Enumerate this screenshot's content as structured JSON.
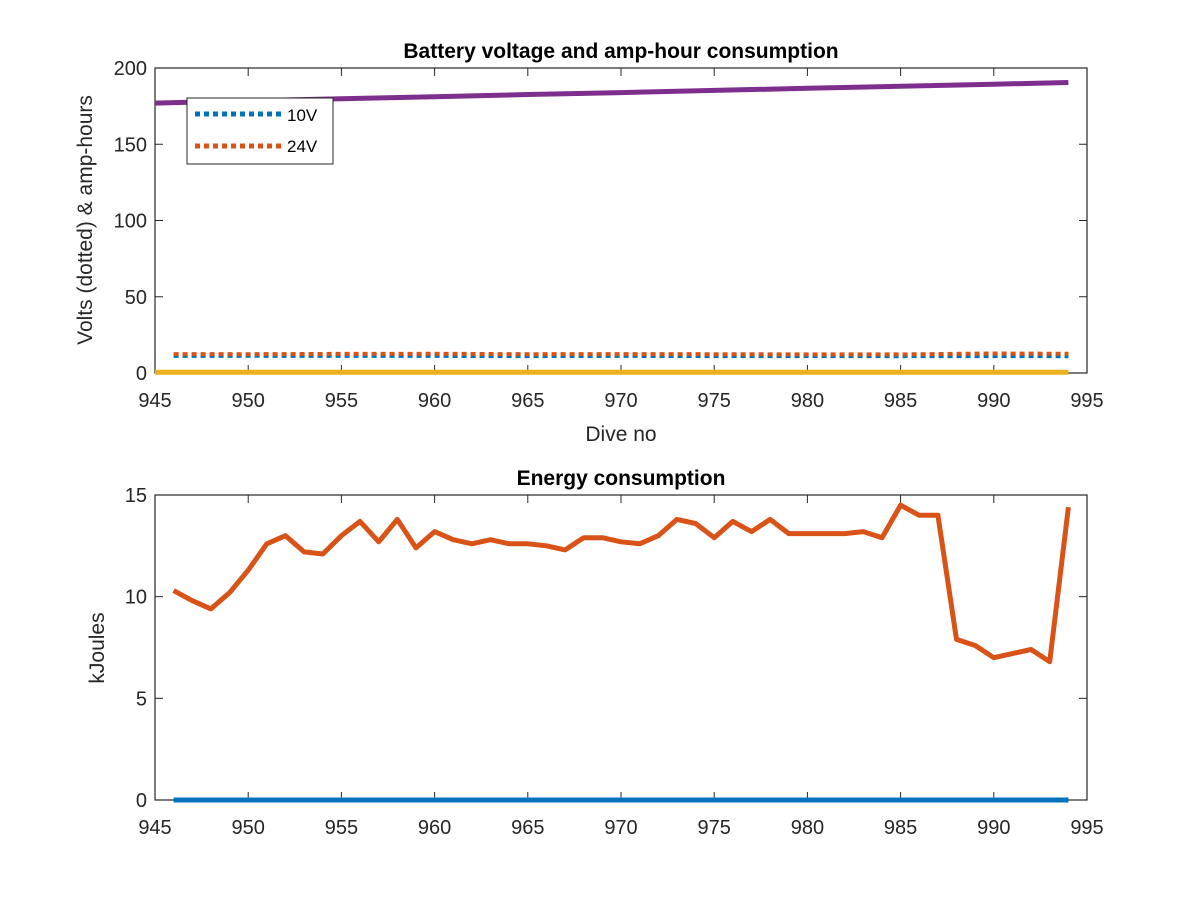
{
  "chart_data": [
    {
      "type": "line",
      "title": "Battery voltage and amp-hour consumption",
      "xlabel": "Dive no",
      "ylabel": "Volts (dotted) & amp-hours",
      "xlim": [
        945,
        995
      ],
      "ylim": [
        0,
        200
      ],
      "xticks": [
        "945",
        "950",
        "955",
        "960",
        "965",
        "970",
        "975",
        "980",
        "985",
        "990",
        "995"
      ],
      "yticks": [
        "0",
        "50",
        "100",
        "150",
        "200"
      ],
      "grid": false,
      "legend_position": "top-left",
      "series": [
        {
          "name": "10V",
          "style": "dotted",
          "color": "#0072BD",
          "x": [
            946,
            950,
            955,
            960,
            965,
            970,
            975,
            980,
            985,
            987,
            990,
            994
          ],
          "y": [
            11.2,
            11.3,
            11.2,
            11.2,
            11.1,
            11.2,
            11.1,
            11.1,
            11.0,
            11.1,
            11.1,
            11.0
          ]
        },
        {
          "name": "24V",
          "style": "dotted",
          "color": "#D95319",
          "x": [
            946,
            950,
            955,
            960,
            965,
            970,
            975,
            980,
            985,
            990,
            994
          ],
          "y": [
            12.4,
            12.3,
            12.5,
            12.6,
            12.3,
            12.4,
            12.3,
            12.2,
            12.2,
            12.8,
            12.6
          ]
        },
        {
          "style": "solid",
          "color": "#EDB120",
          "x": [
            945,
            994
          ],
          "y": [
            0.5,
            0.5
          ]
        },
        {
          "style": "solid",
          "color": "#7E2F8E",
          "x": [
            945,
            950,
            955,
            960,
            965,
            970,
            975,
            980,
            985,
            990,
            994
          ],
          "y": [
            177,
            178.5,
            179.8,
            181.2,
            182.6,
            183.9,
            185.3,
            186.7,
            188.0,
            189.4,
            190.5
          ]
        }
      ]
    },
    {
      "type": "line",
      "title": "Energy consumption",
      "xlabel": "",
      "ylabel": "kJoules",
      "xlim": [
        945,
        995
      ],
      "ylim": [
        0,
        15
      ],
      "xticks": [
        "945",
        "950",
        "955",
        "960",
        "965",
        "970",
        "975",
        "980",
        "985",
        "990",
        "995"
      ],
      "yticks": [
        "0",
        "5",
        "10",
        "15"
      ],
      "grid": false,
      "series": [
        {
          "style": "solid",
          "color": "#0072BD",
          "x": [
            946,
            994
          ],
          "y": [
            0,
            0
          ]
        },
        {
          "style": "solid",
          "color": "#D95319",
          "x": [
            946,
            947,
            948,
            949,
            950,
            951,
            952,
            953,
            954,
            955,
            956,
            957,
            958,
            959,
            960,
            961,
            962,
            963,
            964,
            965,
            966,
            967,
            968,
            969,
            970,
            971,
            972,
            973,
            974,
            975,
            976,
            977,
            978,
            979,
            980,
            981,
            982,
            983,
            984,
            985,
            986,
            987,
            988,
            989,
            990,
            991,
            992,
            993,
            994
          ],
          "y": [
            10.3,
            9.8,
            9.4,
            10.2,
            11.3,
            12.6,
            13.0,
            12.2,
            12.1,
            13.0,
            13.7,
            12.7,
            13.8,
            12.4,
            13.2,
            12.8,
            12.6,
            12.8,
            12.6,
            12.6,
            12.5,
            12.3,
            12.9,
            12.9,
            12.7,
            12.6,
            13.0,
            13.8,
            13.6,
            12.9,
            13.7,
            13.2,
            13.8,
            13.1,
            13.1,
            13.1,
            13.1,
            13.2,
            12.9,
            14.5,
            14.0,
            14.0,
            7.9,
            7.6,
            7.0,
            7.2,
            7.4,
            6.8,
            14.4
          ]
        }
      ]
    }
  ]
}
